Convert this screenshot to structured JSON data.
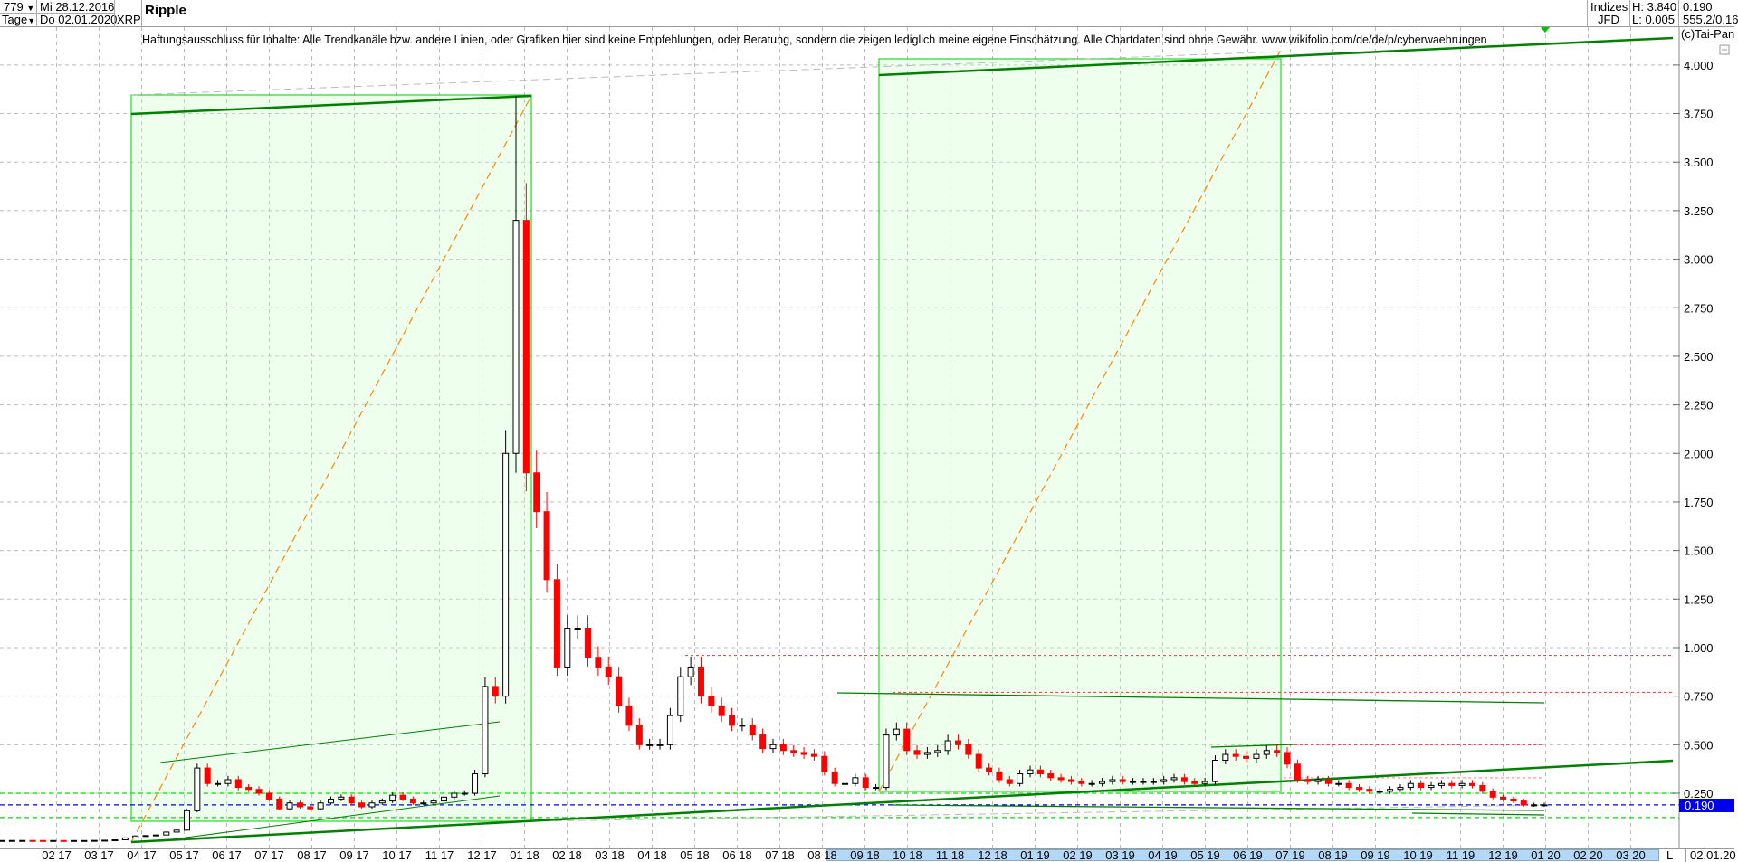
{
  "header": {
    "count": "779",
    "period": "Tage",
    "start_date": "Mi 28.12.2016",
    "end_date": "Do 02.01.2020",
    "symbol": "XRP",
    "title": "Ripple",
    "market": "Indizes",
    "source": "JFD",
    "high": "H: 3.840",
    "low": "L: 0.005",
    "last": "0.190",
    "extra": "555.2/0.16"
  },
  "disclaimer": "Haftungsausschluss für Inhalte: Alle Trendkanäle bzw. andere Linien, oder Grafiken hier sind keine Empfehlungen, oder Beratung, sondern die zeigen lediglich meine eigene Einschätzung. Alle Chartdaten sind ohne Gewähr.  www.wikifolio.com/de/de/p/cyberwaehrungen",
  "copyright": "(c)Tai-Pan",
  "axis_mode": "L",
  "axis_date": "02.01.20",
  "colors": {
    "up": "#000000",
    "down": "#ff0000",
    "box": "#00dd00",
    "trend": "#008000",
    "price_marker": "#0000ee"
  },
  "chart_data": {
    "type": "candlestick",
    "title": "Ripple",
    "x_range": [
      "28.12.2016",
      "02.01.2020"
    ],
    "y_range": [
      0,
      4.1
    ],
    "y_ticks": [
      "4.000",
      "3.750",
      "3.500",
      "3.250",
      "3.000",
      "2.750",
      "2.500",
      "2.250",
      "2.000",
      "1.750",
      "1.500",
      "1.250",
      "1.000",
      "0.750",
      "0.500",
      "0.250"
    ],
    "x_ticks": [
      "02 17",
      "03 17",
      "04 17",
      "05 17",
      "06 17",
      "07 17",
      "08 17",
      "09 17",
      "10 17",
      "11 17",
      "12 17",
      "01 18",
      "02 18",
      "03 18",
      "04 18",
      "05 18",
      "06 18",
      "07 18",
      "08 18",
      "09 18",
      "10 18",
      "11 18",
      "12 18",
      "01 19",
      "02 19",
      "03 19",
      "04 19",
      "05 19",
      "06 19",
      "07 19",
      "08 19",
      "09 19",
      "10 19",
      "11 19",
      "12 19",
      "01 20",
      "02 20",
      "03 20"
    ],
    "last_price": "0.190",
    "grid": true,
    "weekly_close": [
      0.0065,
      0.0066,
      0.0067,
      0.0066,
      0.0065,
      0.0065,
      0.0064,
      0.0064,
      0.0065,
      0.007,
      0.008,
      0.01,
      0.02,
      0.03,
      0.032,
      0.035,
      0.05,
      0.06,
      0.16,
      0.38,
      0.3,
      0.3,
      0.32,
      0.28,
      0.27,
      0.25,
      0.22,
      0.17,
      0.2,
      0.18,
      0.17,
      0.2,
      0.22,
      0.23,
      0.2,
      0.18,
      0.2,
      0.21,
      0.24,
      0.22,
      0.2,
      0.2,
      0.21,
      0.23,
      0.25,
      0.25,
      0.35,
      0.8,
      0.75,
      2.0,
      3.2,
      1.9,
      1.7,
      1.35,
      0.9,
      1.1,
      1.1,
      0.95,
      0.9,
      0.85,
      0.7,
      0.6,
      0.5,
      0.5,
      0.5,
      0.65,
      0.85,
      0.9,
      0.75,
      0.7,
      0.65,
      0.6,
      0.6,
      0.55,
      0.48,
      0.5,
      0.47,
      0.46,
      0.45,
      0.44,
      0.36,
      0.3,
      0.3,
      0.33,
      0.28,
      0.28,
      0.55,
      0.58,
      0.47,
      0.45,
      0.46,
      0.47,
      0.52,
      0.5,
      0.45,
      0.38,
      0.36,
      0.32,
      0.3,
      0.35,
      0.37,
      0.35,
      0.33,
      0.32,
      0.31,
      0.3,
      0.3,
      0.31,
      0.32,
      0.31,
      0.31,
      0.31,
      0.31,
      0.32,
      0.33,
      0.31,
      0.3,
      0.31,
      0.42,
      0.45,
      0.44,
      0.43,
      0.45,
      0.47,
      0.46,
      0.4,
      0.32,
      0.31,
      0.32,
      0.3,
      0.3,
      0.28,
      0.27,
      0.26,
      0.26,
      0.27,
      0.28,
      0.3,
      0.28,
      0.29,
      0.3,
      0.29,
      0.3,
      0.29,
      0.26,
      0.23,
      0.22,
      0.21,
      0.19,
      0.19,
      0.19
    ],
    "high": 3.84,
    "low": 0.005,
    "levels": [
      0.96,
      0.77,
      0.5,
      0.25,
      0.19,
      0.125
    ]
  }
}
